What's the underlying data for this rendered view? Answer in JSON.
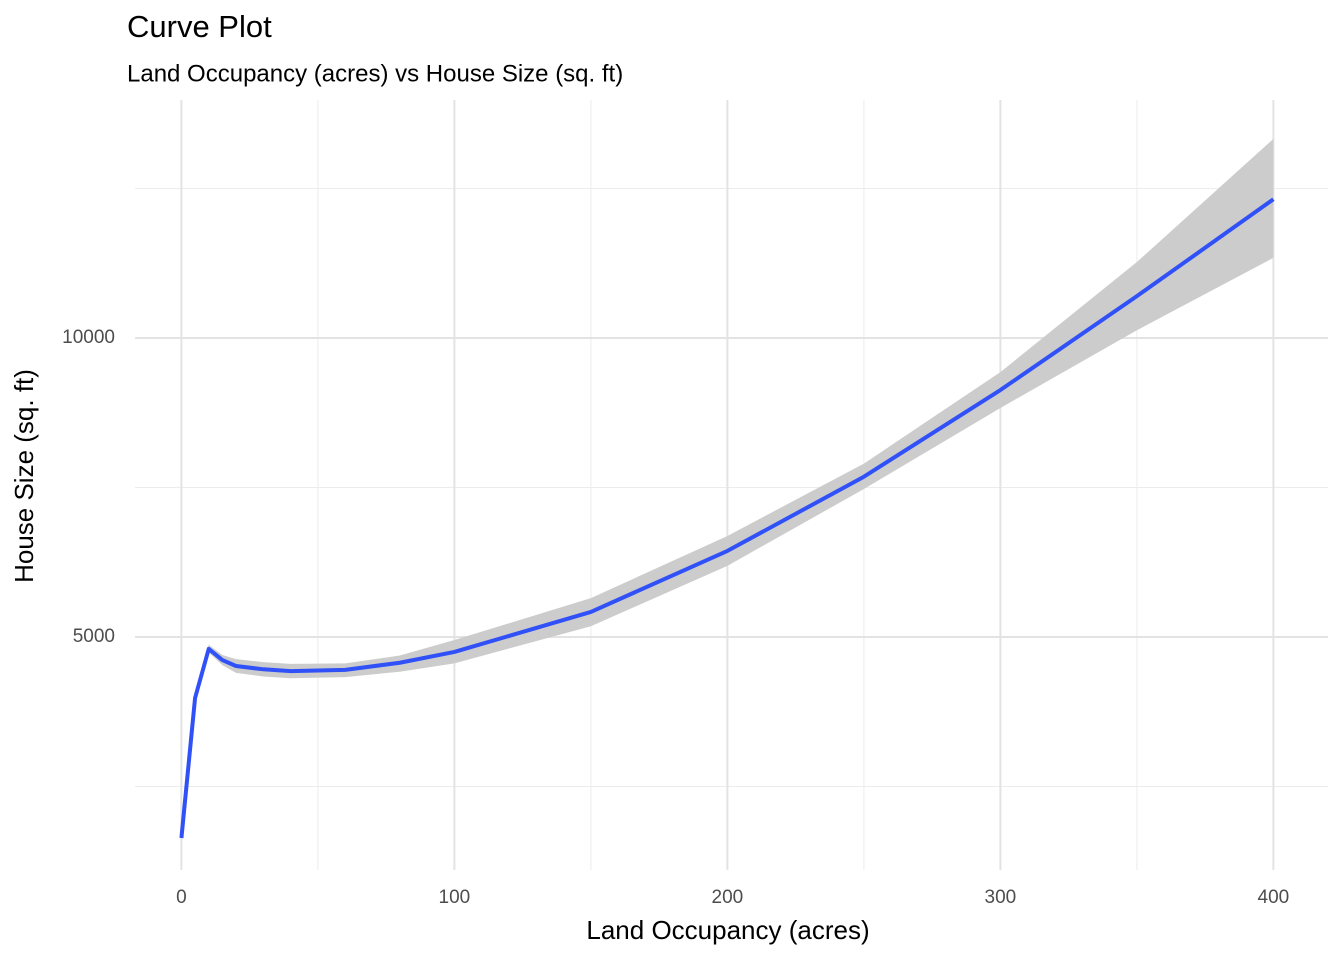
{
  "chart_data": {
    "type": "line",
    "title": "Curve Plot",
    "subtitle": "Land Occupancy (acres) vs House Size (sq. ft)",
    "x_label": "Land Occupancy (acres)",
    "y_label": "House Size (sq. ft)",
    "x": [
      0,
      5,
      10,
      15,
      20,
      30,
      40,
      60,
      80,
      100,
      150,
      200,
      250,
      300,
      350,
      400
    ],
    "values": [
      1639,
      3980,
      4800,
      4615,
      4515,
      4460,
      4430,
      4450,
      4570,
      4750,
      5420,
      6440,
      7680,
      9130,
      10700,
      12320
    ],
    "lower": [
      1600,
      3930,
      4740,
      4530,
      4400,
      4340,
      4310,
      4330,
      4420,
      4560,
      5180,
      6190,
      7475,
      8830,
      10130,
      11340
    ],
    "upper": [
      1680,
      4030,
      4870,
      4700,
      4630,
      4580,
      4550,
      4560,
      4690,
      4950,
      5650,
      6690,
      7900,
      9430,
      11270,
      13330
    ],
    "color": "#3050f8",
    "band_color": "#cccccc",
    "xlim": [
      -17,
      420
    ],
    "ylim": [
      1104,
      13980
    ],
    "xticks": [
      0,
      100,
      200,
      300,
      400
    ],
    "x_minor_ticks": [
      50,
      150,
      250,
      350
    ],
    "yticks": [
      5000,
      10000
    ],
    "y_minor_ticks": [
      2500,
      7500,
      12500
    ],
    "grid": true
  }
}
